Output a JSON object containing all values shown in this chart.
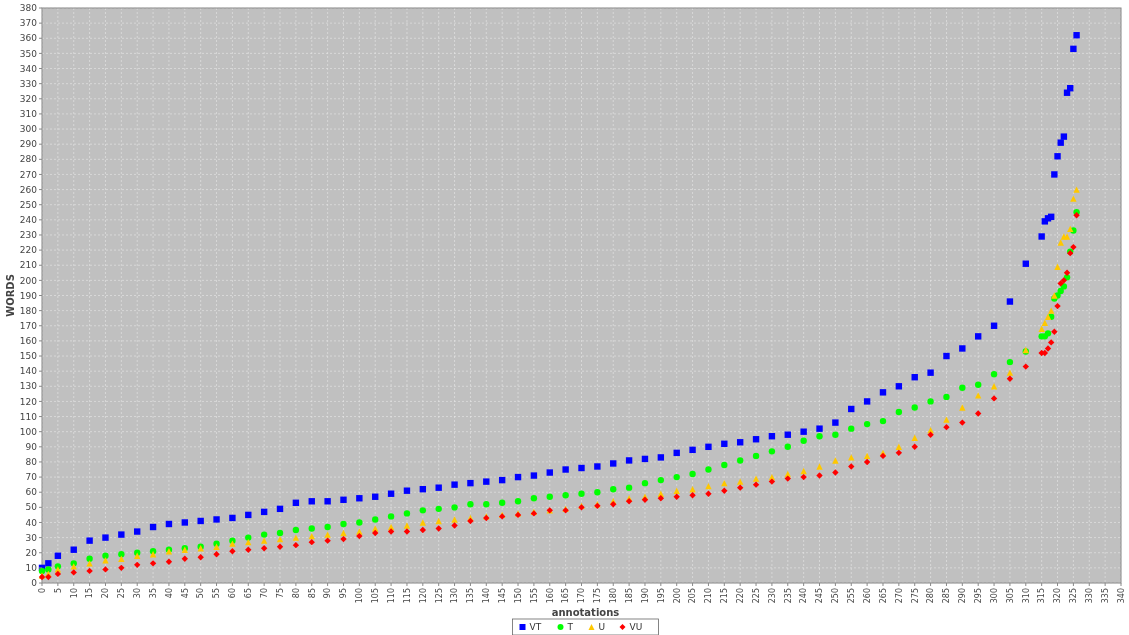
{
  "chart_data": {
    "type": "scatter",
    "xlabel": "annotations",
    "ylabel": "WORDS",
    "x": [
      0,
      2,
      5,
      10,
      15,
      20,
      25,
      30,
      35,
      40,
      45,
      50,
      55,
      60,
      65,
      70,
      75,
      80,
      85,
      90,
      95,
      100,
      105,
      110,
      115,
      120,
      125,
      130,
      135,
      140,
      145,
      150,
      155,
      160,
      165,
      170,
      175,
      180,
      185,
      190,
      195,
      200,
      205,
      210,
      215,
      220,
      225,
      230,
      235,
      240,
      245,
      250,
      255,
      260,
      265,
      270,
      275,
      280,
      285,
      290,
      295,
      300,
      305,
      310,
      315,
      316,
      317,
      318,
      319,
      320,
      321,
      322,
      323,
      324,
      325,
      326
    ],
    "series": [
      {
        "name": "VT",
        "color": "#0000ff",
        "marker": "square",
        "values": [
          10,
          13,
          18,
          22,
          28,
          30,
          32,
          34,
          37,
          39,
          40,
          41,
          42,
          43,
          45,
          47,
          49,
          53,
          54,
          54,
          55,
          56,
          57,
          59,
          61,
          62,
          63,
          65,
          66,
          67,
          68,
          70,
          71,
          73,
          75,
          76,
          77,
          79,
          81,
          82,
          83,
          86,
          88,
          90,
          92,
          93,
          95,
          97,
          98,
          100,
          102,
          106,
          115,
          120,
          126,
          130,
          136,
          139,
          150,
          155,
          163,
          170,
          186,
          211,
          229,
          239,
          241,
          242,
          270,
          282,
          291,
          295,
          324,
          327,
          353,
          362
        ]
      },
      {
        "name": "T",
        "color": "#00ff00",
        "marker": "circle",
        "values": [
          8,
          9,
          11,
          13,
          16,
          18,
          19,
          20,
          21,
          22,
          23,
          24,
          26,
          28,
          30,
          32,
          33,
          35,
          36,
          37,
          39,
          40,
          42,
          44,
          46,
          48,
          49,
          50,
          52,
          52,
          53,
          54,
          56,
          57,
          58,
          59,
          60,
          62,
          63,
          66,
          68,
          70,
          72,
          75,
          78,
          81,
          84,
          87,
          90,
          94,
          97,
          98,
          102,
          105,
          107,
          113,
          116,
          120,
          123,
          129,
          131,
          138,
          146,
          153,
          163,
          163,
          165,
          176,
          188,
          190,
          193,
          196,
          202,
          219,
          233,
          245
        ]
      },
      {
        "name": "U",
        "color": "#ffc800",
        "marker": "triangle",
        "values": [
          5,
          6,
          9,
          11,
          13,
          15,
          16,
          18,
          19,
          21,
          22,
          23,
          24,
          26,
          27,
          28,
          29,
          30,
          31,
          32,
          33,
          34,
          36,
          37,
          38,
          40,
          41,
          42,
          43,
          44,
          45,
          46,
          47,
          48,
          49,
          51,
          52,
          54,
          56,
          57,
          59,
          61,
          62,
          64,
          66,
          67,
          69,
          70,
          72,
          74,
          77,
          81,
          83,
          84,
          86,
          90,
          96,
          101,
          108,
          116,
          124,
          130,
          139,
          154,
          168,
          172,
          176,
          180,
          190,
          209,
          225,
          229,
          229,
          234,
          254,
          260
        ]
      },
      {
        "name": "VU",
        "color": "#ff0000",
        "marker": "diamond",
        "values": [
          4,
          4,
          6,
          7,
          8,
          9,
          10,
          12,
          13,
          14,
          16,
          17,
          19,
          21,
          22,
          23,
          24,
          25,
          27,
          28,
          29,
          31,
          33,
          34,
          34,
          35,
          36,
          38,
          41,
          43,
          44,
          45,
          46,
          48,
          48,
          50,
          51,
          52,
          54,
          55,
          56,
          57,
          58,
          59,
          61,
          63,
          65,
          67,
          69,
          70,
          71,
          73,
          77,
          80,
          84,
          86,
          90,
          98,
          103,
          106,
          112,
          122,
          135,
          143,
          152,
          152,
          155,
          159,
          166,
          183,
          198,
          200,
          205,
          218,
          222,
          243
        ]
      }
    ],
    "xlim": [
      0,
      340
    ],
    "xticks": [
      0,
      5,
      10,
      15,
      20,
      25,
      30,
      35,
      40,
      45,
      50,
      55,
      60,
      65,
      70,
      75,
      80,
      85,
      90,
      95,
      100,
      105,
      110,
      115,
      120,
      125,
      130,
      135,
      140,
      145,
      150,
      155,
      160,
      165,
      170,
      175,
      180,
      185,
      190,
      195,
      200,
      205,
      210,
      215,
      220,
      225,
      230,
      235,
      240,
      245,
      250,
      255,
      260,
      265,
      270,
      275,
      280,
      285,
      290,
      295,
      300,
      305,
      310,
      315,
      320,
      325,
      330,
      335,
      340
    ],
    "ylim": [
      0,
      380
    ],
    "yticks": [
      0,
      10,
      20,
      30,
      40,
      50,
      60,
      70,
      80,
      90,
      100,
      110,
      120,
      130,
      140,
      150,
      160,
      170,
      180,
      190,
      200,
      210,
      220,
      230,
      240,
      250,
      260,
      270,
      280,
      290,
      300,
      310,
      320,
      330,
      340,
      350,
      360,
      370,
      380
    ],
    "grid": true,
    "legend": "bottom"
  }
}
